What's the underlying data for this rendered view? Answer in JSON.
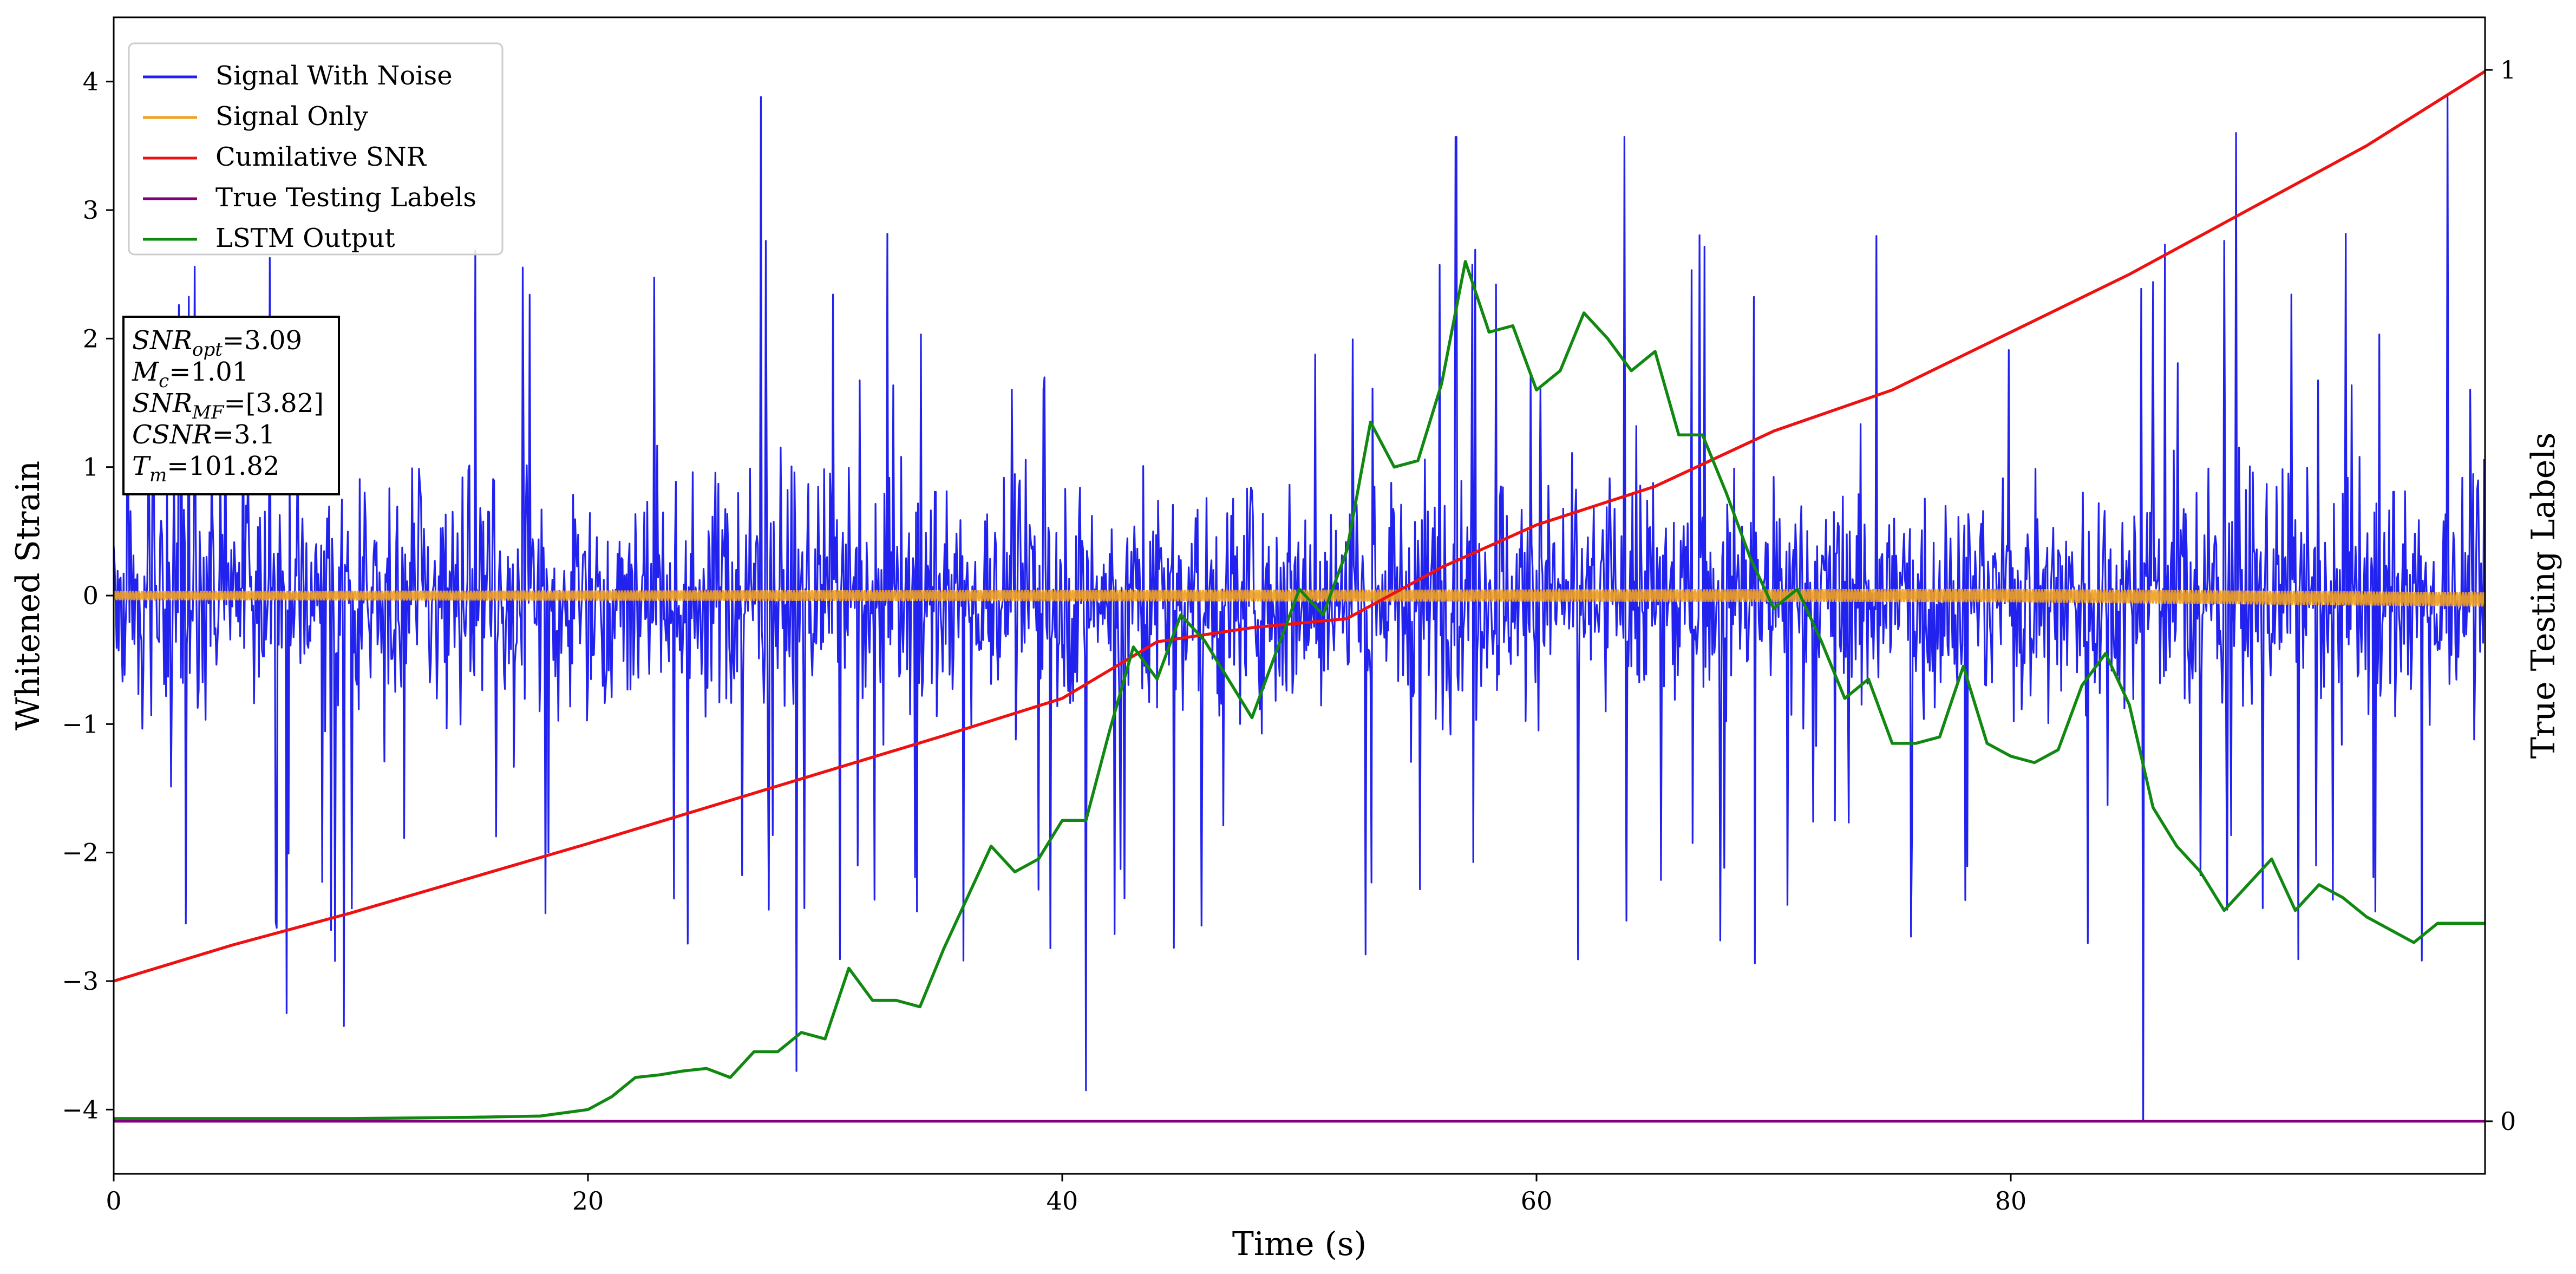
{
  "chart_data": {
    "type": "line",
    "xlabel": "Time (s)",
    "ylabel": "Whitened Strain",
    "ylabel_right": "True Testing Labels",
    "xlim": [
      0,
      100
    ],
    "ylim": [
      -4.5,
      4.5
    ],
    "ylim_right": [
      -0.05,
      1.05
    ],
    "x_ticks": [
      0,
      20,
      40,
      60,
      80
    ],
    "y_ticks": [
      -4,
      -3,
      -2,
      -1,
      0,
      1,
      2,
      3,
      4
    ],
    "y_ticks_right": [
      0,
      1
    ],
    "grid": false,
    "legend_position": "upper-left",
    "series": [
      {
        "name": "Signal With Noise",
        "color": "#2222ee",
        "axis": "left",
        "note": "dense noise, mostly within ±1.2 with spikes",
        "envelope_points": [
          {
            "x": 7.3,
            "y": -3.25
          },
          {
            "x": 9.7,
            "y": -3.35
          },
          {
            "x": 27.3,
            "y": 3.88
          },
          {
            "x": 28.8,
            "y": -3.7
          },
          {
            "x": 41.0,
            "y": -3.85
          },
          {
            "x": 56.6,
            "y": 3.57
          },
          {
            "x": 63.7,
            "y": 3.57
          },
          {
            "x": 85.6,
            "y": -4.08
          },
          {
            "x": 89.5,
            "y": 3.6
          },
          {
            "x": 98.4,
            "y": 3.88
          }
        ]
      },
      {
        "name": "Signal Only",
        "color": "#f0a020",
        "axis": "left",
        "x": [
          0,
          20,
          40,
          60,
          80,
          100
        ],
        "y": [
          0.0,
          0.0,
          0.0,
          0.0,
          0.0,
          -0.03
        ]
      },
      {
        "name": "Cumilative SNR",
        "color": "#ee1111",
        "axis": "left",
        "x": [
          0,
          5,
          10,
          15,
          20,
          25,
          30,
          35,
          40,
          44,
          48,
          52,
          56,
          60,
          65,
          70,
          75,
          80,
          85,
          90,
          95,
          100
        ],
        "y": [
          -3.0,
          -2.72,
          -2.47,
          -2.2,
          -1.93,
          -1.65,
          -1.37,
          -1.09,
          -0.8,
          -0.36,
          -0.25,
          -0.18,
          0.22,
          0.55,
          0.85,
          1.28,
          1.6,
          2.05,
          2.5,
          3.0,
          3.5,
          4.08
        ]
      },
      {
        "name": "True Testing Labels",
        "color": "#800080",
        "axis": "right",
        "x": [
          0,
          100
        ],
        "y": [
          0,
          0
        ]
      },
      {
        "name": "LSTM Output",
        "color": "#118811",
        "axis": "left",
        "x": [
          0,
          10,
          15,
          18,
          20,
          21,
          22,
          23,
          24,
          25,
          26,
          27,
          28,
          29,
          30,
          31,
          32,
          33,
          34,
          35,
          36,
          37,
          38,
          39,
          40,
          41,
          42,
          43,
          44,
          45,
          46,
          47,
          48,
          49,
          50,
          51,
          52,
          53,
          54,
          55,
          56,
          57,
          58,
          59,
          60,
          61,
          62,
          63,
          64,
          65,
          66,
          67,
          68,
          69,
          70,
          71,
          72,
          73,
          74,
          75,
          76,
          77,
          78,
          79,
          80,
          81,
          82,
          83,
          84,
          85,
          86,
          87,
          88,
          89,
          90,
          91,
          92,
          93,
          94,
          95,
          96,
          97,
          98,
          99,
          100
        ],
        "y": [
          -4.07,
          -4.07,
          -4.06,
          -4.05,
          -4.0,
          -3.9,
          -3.75,
          -3.73,
          -3.7,
          -3.68,
          -3.75,
          -3.55,
          -3.55,
          -3.4,
          -3.45,
          -2.9,
          -3.15,
          -3.15,
          -3.2,
          -2.75,
          -2.35,
          -1.95,
          -2.15,
          -2.05,
          -1.75,
          -1.75,
          -1.05,
          -0.4,
          -0.65,
          -0.15,
          -0.35,
          -0.65,
          -0.95,
          -0.45,
          0.05,
          -0.15,
          0.35,
          1.35,
          1.0,
          1.05,
          1.65,
          2.6,
          2.05,
          2.1,
          1.6,
          1.75,
          2.2,
          2.0,
          1.75,
          1.9,
          1.25,
          1.25,
          0.8,
          0.3,
          -0.1,
          0.05,
          -0.35,
          -0.8,
          -0.65,
          -1.15,
          -1.15,
          -1.1,
          -0.55,
          -1.15,
          -1.25,
          -1.3,
          -1.2,
          -0.7,
          -0.45,
          -0.85,
          -1.65,
          -1.95,
          -2.15,
          -2.45,
          -2.25,
          -2.05,
          -2.45,
          -2.25,
          -2.35,
          -2.5,
          -2.6,
          -2.7,
          -2.55,
          -2.55,
          -2.55
        ]
      }
    ],
    "annotation": {
      "lines": [
        {
          "base": "SNR",
          "sub": "opt",
          "value": "=3.09"
        },
        {
          "base": "M",
          "sub": "c",
          "value": "=1.01"
        },
        {
          "base": "SNR",
          "sub": "MF",
          "value": "=[3.82]"
        },
        {
          "base": "CSNR",
          "sub": "",
          "value": "=3.1"
        },
        {
          "base": "T",
          "sub": "m",
          "value": "=101.82"
        }
      ]
    }
  }
}
